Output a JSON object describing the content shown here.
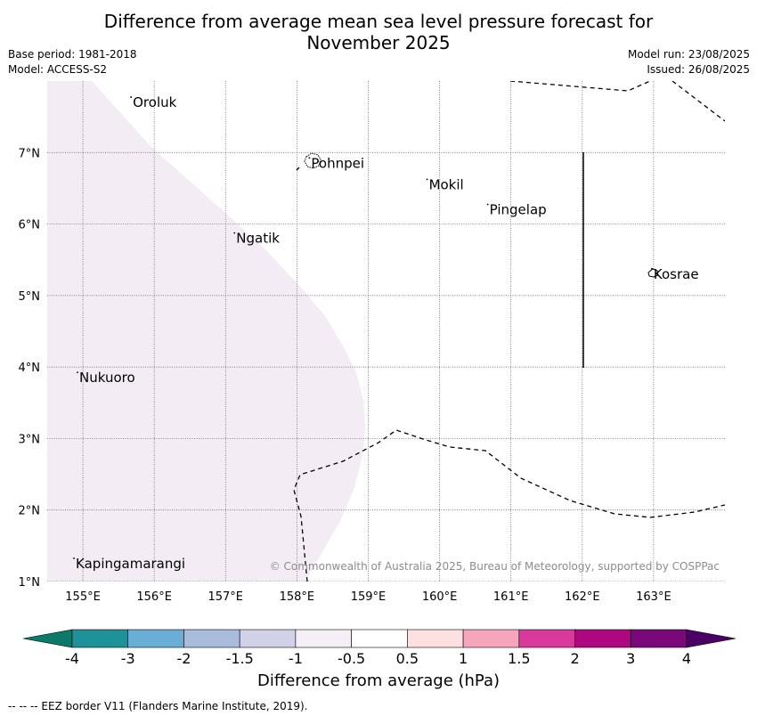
{
  "title_line1": "Difference from average mean sea level pressure forecast for",
  "title_line2": "November 2025",
  "meta": {
    "base_period": "Base period: 1981-2018",
    "model": "Model: ACCESS-S2",
    "model_run": "Model run: 23/08/2025",
    "issued": "Issued: 26/08/2025"
  },
  "map": {
    "lon_range": [
      154.5,
      164.0
    ],
    "lat_range": [
      1.0,
      8.0
    ],
    "lon_ticks": [
      {
        "value": 155,
        "label": "155°E"
      },
      {
        "value": 156,
        "label": "156°E"
      },
      {
        "value": 157,
        "label": "157°E"
      },
      {
        "value": 158,
        "label": "158°E"
      },
      {
        "value": 159,
        "label": "159°E"
      },
      {
        "value": 160,
        "label": "160°E"
      },
      {
        "value": 161,
        "label": "161°E"
      },
      {
        "value": 162,
        "label": "162°E"
      },
      {
        "value": 163,
        "label": "163°E"
      }
    ],
    "lat_ticks": [
      {
        "value": 1,
        "label": "1°N"
      },
      {
        "value": 2,
        "label": "2°N"
      },
      {
        "value": 3,
        "label": "3°N"
      },
      {
        "value": 4,
        "label": "4°N"
      },
      {
        "value": 5,
        "label": "5°N"
      },
      {
        "value": 6,
        "label": "6°N"
      },
      {
        "value": 7,
        "label": "7°N"
      }
    ],
    "places": [
      {
        "name": "Oroluk",
        "lon": 155.7,
        "lat": 7.7
      },
      {
        "name": "Pohnpei",
        "lon": 158.2,
        "lat": 6.85
      },
      {
        "name": "Mokil",
        "lon": 159.85,
        "lat": 6.55
      },
      {
        "name": "Pingelap",
        "lon": 160.7,
        "lat": 6.2
      },
      {
        "name": "Ngatik",
        "lon": 157.15,
        "lat": 5.8
      },
      {
        "name": "Kosrae",
        "lon": 163.0,
        "lat": 5.3
      },
      {
        "name": "Nukuoro",
        "lon": 154.95,
        "lat": 3.85
      },
      {
        "name": "Kapingamarangi",
        "lon": 154.9,
        "lat": 1.25
      }
    ],
    "shaded_region_color": "#f3ecf5",
    "copyright": "© Commonwealth of Australia 2025, Bureau of Meteorology, supported by COSPPac"
  },
  "colorbar": {
    "colors": [
      "#0b7a6b",
      "#1f9199",
      "#6aaed5",
      "#a9bcdc",
      "#d1d2e8",
      "#f5eef7",
      "#ffffff",
      "#fde0e0",
      "#f6a5bd",
      "#d8399a",
      "#ad0781",
      "#7a087a",
      "#4b0066"
    ],
    "tick_labels": [
      "-4",
      "-3",
      "-2",
      "-1.5",
      "-1",
      "-0.5",
      "0.5",
      "1",
      "1.5",
      "2",
      "3",
      "4"
    ],
    "label": "Difference from average (hPa)"
  },
  "footer": "-- -- -- EEZ border V11 (Flanders Marine Institute, 2019)."
}
